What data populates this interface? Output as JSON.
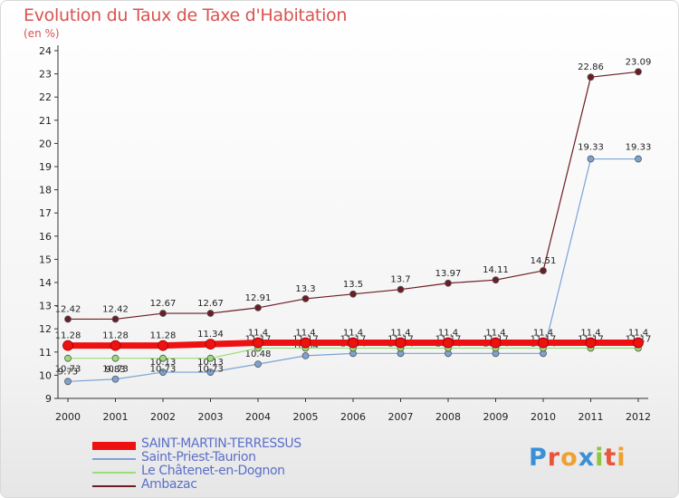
{
  "title": "Evolution du Taux de Taxe d'Habitation",
  "unit": "(en %)",
  "logo": {
    "letters": [
      "P",
      "r",
      "o",
      "x",
      "i",
      "t",
      "i"
    ],
    "colors": [
      "#3a8fd6",
      "#e8553a",
      "#f0a030",
      "#3a8fd6",
      "#8cc63f",
      "#e8553a",
      "#f0a030"
    ]
  },
  "chart_data": {
    "type": "line",
    "title": "Evolution du Taux de Taxe d'Habitation",
    "ylabel": "(en %)",
    "xlabel": "",
    "x": [
      "2000",
      "2001",
      "2002",
      "2003",
      "2004",
      "2005",
      "2006",
      "2007",
      "2008",
      "2009",
      "2010",
      "2011",
      "2012"
    ],
    "ylim": [
      9,
      24
    ],
    "yticks": [
      9,
      10,
      11,
      12,
      13,
      14,
      15,
      16,
      17,
      18,
      19,
      20,
      21,
      22,
      23,
      24
    ],
    "grid": false,
    "legend_position": "bottom-left",
    "series": [
      {
        "name": "Ambazac",
        "color": "#6b1c24",
        "values": [
          12.42,
          12.42,
          12.67,
          12.67,
          12.91,
          13.3,
          13.5,
          13.7,
          13.97,
          14.11,
          14.51,
          22.86,
          23.09
        ],
        "labels": [
          "12.42",
          "12.42",
          "12.67",
          "12.67",
          "12.91",
          "13.3",
          "13.5",
          "13.7",
          "13.97",
          "14.11",
          "14.51",
          "22.86",
          "23.09"
        ]
      },
      {
        "name": "Saint-Priest-Taurion",
        "color": "#7ba3d6",
        "values": [
          9.73,
          9.83,
          10.13,
          10.13,
          10.48,
          10.84,
          10.94,
          10.94,
          10.94,
          10.94,
          10.94,
          19.33,
          19.33
        ],
        "labels": [
          "9.73",
          "9.83",
          "10.13",
          "10.13",
          "10.48",
          "10.84",
          "10.94",
          "10.94",
          "10.94",
          "10.94",
          "10.94",
          "19.33",
          "19.33"
        ]
      },
      {
        "name": "Le Châtenet-en-Dognon",
        "color": "#99dd77",
        "values": [
          10.73,
          10.73,
          10.73,
          10.73,
          11.17,
          11.17,
          11.17,
          11.17,
          11.17,
          11.17,
          11.17,
          11.17,
          11.17
        ],
        "labels": [
          "10.73",
          "10.73",
          "10.73",
          "10.73",
          "11.17",
          "11.17",
          "11.17",
          "11.17",
          "11.17",
          "11.17",
          "11.17",
          "11.17",
          "11.17"
        ]
      },
      {
        "name": "SAINT-MARTIN-TERRESSUS",
        "color": "#ee1111",
        "values": [
          11.28,
          11.28,
          11.28,
          11.34,
          11.4,
          11.4,
          11.4,
          11.4,
          11.4,
          11.4,
          11.4,
          11.4,
          11.4
        ],
        "labels": [
          "11.28",
          "11.28",
          "11.28",
          "11.34",
          "11.4",
          "11.4",
          "11.4",
          "11.4",
          "11.4",
          "11.4",
          "11.4",
          "11.4",
          "11.4"
        ]
      }
    ],
    "legend_order": [
      "SAINT-MARTIN-TERRESSUS",
      "Saint-Priest-Taurion",
      "Le Châtenet-en-Dognon",
      "Ambazac"
    ]
  }
}
